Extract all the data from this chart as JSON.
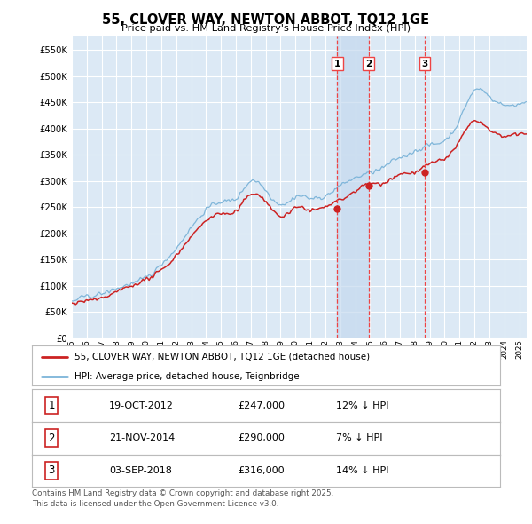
{
  "title": "55, CLOVER WAY, NEWTON ABBOT, TQ12 1GE",
  "subtitle": "Price paid vs. HM Land Registry's House Price Index (HPI)",
  "background_color": "#ffffff",
  "plot_bg_color": "#dce9f5",
  "grid_color": "#ffffff",
  "hpi_color": "#7ab3d8",
  "price_color": "#cc2222",
  "vline_color": "#ee4444",
  "shade_color": "#c5d9ee",
  "ylim": [
    0,
    575000
  ],
  "yticks": [
    0,
    50000,
    100000,
    150000,
    200000,
    250000,
    300000,
    350000,
    400000,
    450000,
    500000,
    550000
  ],
  "sale_dates_num": [
    2012.8,
    2014.9,
    2018.67
  ],
  "sale_prices": [
    247000,
    290000,
    316000
  ],
  "sale_labels": [
    "1",
    "2",
    "3"
  ],
  "legend_entries": [
    "55, CLOVER WAY, NEWTON ABBOT, TQ12 1GE (detached house)",
    "HPI: Average price, detached house, Teignbridge"
  ],
  "table_rows": [
    [
      "1",
      "19-OCT-2012",
      "£247,000",
      "12% ↓ HPI"
    ],
    [
      "2",
      "21-NOV-2014",
      "£290,000",
      "7% ↓ HPI"
    ],
    [
      "3",
      "03-SEP-2018",
      "£316,000",
      "14% ↓ HPI"
    ]
  ],
  "footer": "Contains HM Land Registry data © Crown copyright and database right 2025.\nThis data is licensed under the Open Government Licence v3.0.",
  "xmin": 1995.0,
  "xmax": 2025.5
}
